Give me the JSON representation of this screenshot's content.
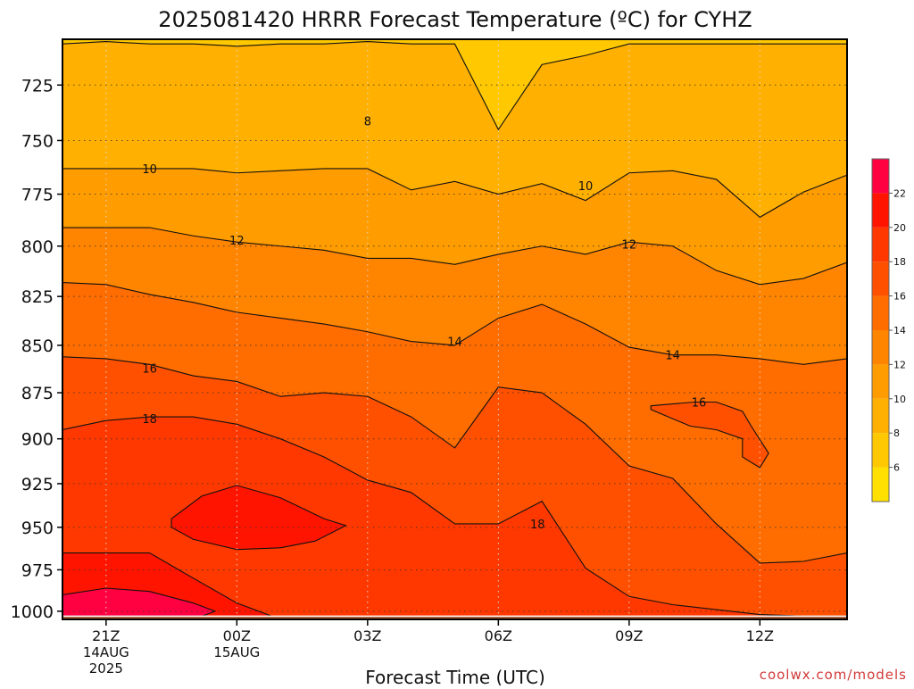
{
  "chart_data": {
    "type": "heatmap",
    "title": "2025081420 HRRR Forecast Temperature (ºC) for CYHZ",
    "xlabel": "Forecast Time (UTC)",
    "ylabel": "",
    "credit": "coolwx.com/models",
    "x_ticks": [
      {
        "label": "21Z",
        "sub": [
          "14AUG",
          "2025"
        ],
        "hour": 0
      },
      {
        "label": "00Z",
        "sub": [
          "15AUG"
        ],
        "hour": 3
      },
      {
        "label": "03Z",
        "sub": [],
        "hour": 6
      },
      {
        "label": "06Z",
        "sub": [],
        "hour": 9
      },
      {
        "label": "09Z",
        "sub": [],
        "hour": 12
      },
      {
        "label": "12Z",
        "sub": [],
        "hour": 15
      }
    ],
    "xlim": [
      -1,
      17
    ],
    "y_ticks": [
      725,
      750,
      775,
      800,
      825,
      850,
      875,
      900,
      925,
      950,
      975,
      1000
    ],
    "ylim": [
      705,
      1005
    ],
    "y_scale": "log",
    "grid": true,
    "colorbar": {
      "levels": [
        4,
        6,
        8,
        10,
        12,
        14,
        16,
        18,
        20,
        22,
        24
      ],
      "labels": [
        "6",
        "8",
        "10",
        "12",
        "14",
        "16",
        "18",
        "20",
        "22"
      ],
      "colors": [
        "#ffe000",
        "#ffc800",
        "#ffb000",
        "#ff9c00",
        "#ff8400",
        "#ff6c00",
        "#ff5000",
        "#ff3800",
        "#ff1400",
        "#ff0040",
        "#ff0070"
      ]
    },
    "hours": [
      -1,
      0,
      1,
      2,
      3,
      4,
      5,
      6,
      7,
      8,
      9,
      10,
      11,
      12,
      13,
      14,
      15,
      16,
      17
    ],
    "isotherms": [
      {
        "level": 8,
        "label": "8",
        "p": [
          707,
          706,
          707,
          707,
          708,
          707,
          707,
          706,
          707,
          707,
          745,
          716,
          712,
          707,
          707,
          707,
          707,
          707,
          707
        ]
      },
      {
        "level": 10,
        "label": "10",
        "p": [
          763,
          763,
          763,
          763,
          765,
          764,
          763,
          763,
          773,
          769,
          775,
          770,
          778,
          765,
          764,
          768,
          786,
          774,
          766
        ]
      },
      {
        "level": 12,
        "label": "12",
        "p": [
          791,
          791,
          791,
          795,
          798,
          800,
          802,
          806,
          806,
          809,
          804,
          800,
          804,
          798,
          800,
          812,
          819,
          816,
          808
        ]
      },
      {
        "level": 14,
        "label": "14",
        "p": [
          818,
          819,
          824,
          828,
          833,
          836,
          839,
          843,
          848,
          850,
          836,
          829,
          839,
          851,
          855,
          855,
          857,
          860,
          857
        ]
      },
      {
        "level": 16,
        "label": "16",
        "p": [
          856,
          857,
          860,
          866,
          869,
          877,
          875,
          877,
          888,
          905,
          872,
          875,
          892,
          915,
          922,
          948,
          971,
          970,
          965
        ]
      },
      {
        "level": 18,
        "label": "18",
        "p": [
          895,
          890,
          888,
          888,
          892,
          900,
          910,
          923,
          930,
          948,
          948,
          935,
          974,
          991,
          996,
          999,
          1002,
          1003,
          1003
        ]
      },
      {
        "level": 20,
        "label": "",
        "p": [
          965,
          965,
          965,
          980,
          995,
          1005,
          1005,
          1005,
          1005,
          1005,
          1005,
          1005,
          1005,
          1005,
          1005,
          1005,
          1005,
          1005,
          1005
        ]
      }
    ],
    "closed_contours": [
      {
        "level": 20,
        "label": "",
        "points": [
          [
            1.5,
            945
          ],
          [
            2.2,
            932
          ],
          [
            3.0,
            926
          ],
          [
            4.0,
            933
          ],
          [
            5.0,
            945
          ],
          [
            5.5,
            949
          ],
          [
            4.8,
            958
          ],
          [
            4.0,
            962
          ],
          [
            3.0,
            963
          ],
          [
            2.0,
            957
          ],
          [
            1.5,
            950
          ]
        ]
      },
      {
        "level": 16,
        "label": "16",
        "points": [
          [
            12.5,
            882
          ],
          [
            13.0,
            881
          ],
          [
            13.5,
            880
          ],
          [
            14.0,
            880
          ],
          [
            14.6,
            885
          ],
          [
            14.8,
            893
          ],
          [
            15.2,
            908
          ],
          [
            15.0,
            916
          ],
          [
            14.6,
            910
          ],
          [
            14.6,
            900
          ],
          [
            14.0,
            895
          ],
          [
            13.4,
            893
          ],
          [
            12.9,
            888
          ],
          [
            12.5,
            884
          ]
        ]
      },
      {
        "level": 22,
        "label": "",
        "points": [
          [
            -1.0,
            990
          ],
          [
            0.0,
            986
          ],
          [
            1.0,
            988
          ],
          [
            2.0,
            995
          ],
          [
            2.5,
            1000
          ],
          [
            2.2,
            1003
          ],
          [
            1.0,
            1003
          ],
          [
            -1.0,
            1003
          ]
        ]
      }
    ],
    "contour_labels": [
      {
        "text": "8",
        "hour": 6.0,
        "p": 741
      },
      {
        "text": "10",
        "hour": 1.0,
        "p": 763
      },
      {
        "text": "10",
        "hour": 11.0,
        "p": 771
      },
      {
        "text": "12",
        "hour": 3.0,
        "p": 797
      },
      {
        "text": "12",
        "hour": 12.0,
        "p": 799
      },
      {
        "text": "14",
        "hour": 8.0,
        "p": 848
      },
      {
        "text": "14",
        "hour": 13.0,
        "p": 855
      },
      {
        "text": "16",
        "hour": 1.0,
        "p": 862
      },
      {
        "text": "16",
        "hour": 13.6,
        "p": 880
      },
      {
        "text": "18",
        "hour": 1.0,
        "p": 889
      },
      {
        "text": "18",
        "hour": 9.9,
        "p": 948
      }
    ],
    "ground_level_p": 1003
  }
}
